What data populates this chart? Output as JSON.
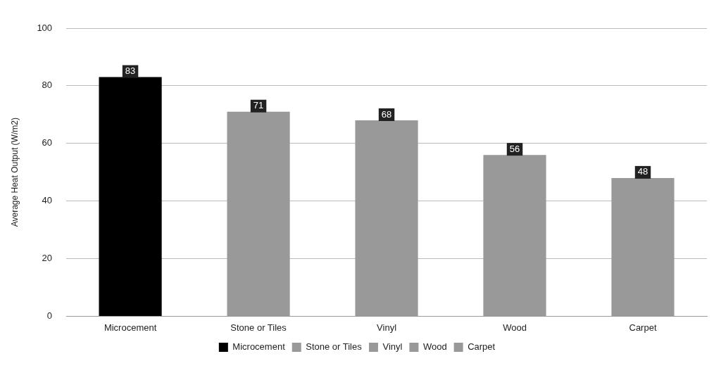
{
  "chart_data": {
    "type": "bar",
    "ylabel": "Average Heat Output (W/m2)",
    "categories": [
      "Microcement",
      "Stone or Tiles",
      "Vinyl",
      "Wood",
      "Carpet"
    ],
    "series": [
      {
        "name": "Microcement",
        "color": "#000000",
        "values": [
          83,
          null,
          null,
          null,
          null
        ]
      },
      {
        "name": "Stone or Tiles",
        "color": "#999999",
        "values": [
          null,
          71,
          null,
          null,
          null
        ]
      },
      {
        "name": "Vinyl",
        "color": "#999999",
        "values": [
          null,
          null,
          68,
          null,
          null
        ]
      },
      {
        "name": "Wood",
        "color": "#999999",
        "values": [
          null,
          null,
          null,
          56,
          null
        ]
      },
      {
        "name": "Carpet",
        "color": "#999999",
        "values": [
          null,
          null,
          null,
          null,
          48
        ]
      }
    ],
    "ylim": [
      0,
      100
    ],
    "yticks": [
      0,
      20,
      40,
      60,
      80,
      100
    ],
    "grid": "y",
    "legend": "bottom",
    "data_labels": true
  }
}
